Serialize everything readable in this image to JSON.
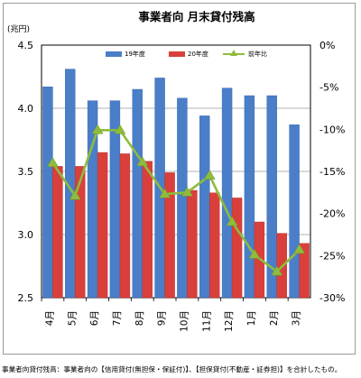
{
  "chart_data": {
    "type": "bar",
    "title": "事業者向 月末貸付残高",
    "unit_left": "(兆円)",
    "categories": [
      "4月",
      "5月",
      "6月",
      "7月",
      "8月",
      "9月",
      "10月",
      "11月",
      "12月",
      "1月",
      "2月",
      "3月"
    ],
    "series": [
      {
        "name": "19年度",
        "type": "bar",
        "axis": "left",
        "color": "#4a7ec8",
        "values": [
          4.17,
          4.31,
          4.06,
          4.06,
          4.15,
          4.24,
          4.08,
          3.94,
          4.16,
          4.1,
          4.1,
          3.87
        ]
      },
      {
        "name": "20年度",
        "type": "bar",
        "axis": "left",
        "color": "#d9403c",
        "values": [
          3.54,
          3.54,
          3.65,
          3.64,
          3.58,
          3.49,
          3.35,
          3.33,
          3.29,
          3.1,
          3.01,
          2.93
        ]
      },
      {
        "name": "前年比",
        "type": "line",
        "axis": "right",
        "color": "#8fbc3c",
        "values": [
          -14.0,
          -17.9,
          -10.1,
          -10.1,
          -13.9,
          -17.7,
          -17.5,
          -15.5,
          -21.0,
          -24.9,
          -26.9,
          -24.3
        ]
      }
    ],
    "y_left": {
      "min": 2.5,
      "max": 4.5,
      "ticks": [
        "2.5",
        "3.0",
        "3.5",
        "4.0",
        "4.5"
      ],
      "tick_values": [
        2.5,
        3.0,
        3.5,
        4.0,
        4.5
      ]
    },
    "y_right": {
      "min": -30,
      "max": 0,
      "ticks": [
        "-30%",
        "-25%",
        "-20%",
        "-15%",
        "-10%",
        "-5%",
        "0%"
      ],
      "tick_values": [
        -30,
        -25,
        -20,
        -15,
        -10,
        -5,
        0
      ]
    },
    "grid": true,
    "legend_position": "top-right"
  },
  "footnote": "事業者向貸付残高：事業者向の【信用貸付(無担保・保証付)】、【担保貸付(不動産・証券担)】を合計したもの。"
}
